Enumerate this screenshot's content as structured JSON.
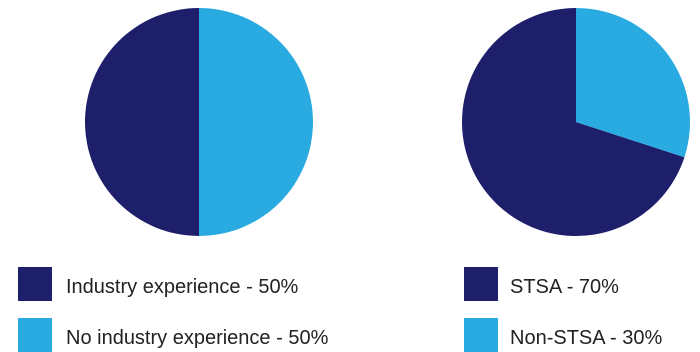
{
  "chart_data": [
    {
      "type": "pie",
      "categories": [
        "Industry experience",
        "No industry experience"
      ],
      "values": [
        50,
        50
      ],
      "colors": [
        "#1e1f6b",
        "#29abe2"
      ],
      "legend_labels": [
        "Industry experience - 50%",
        "No industry experience - 50%"
      ],
      "legend_placement": "bottom",
      "title": ""
    },
    {
      "type": "pie",
      "categories": [
        "STSA",
        "Non-STSA"
      ],
      "values": [
        70,
        30
      ],
      "colors": [
        "#1e1f6b",
        "#29abe2"
      ],
      "legend_labels": [
        "STSA - 70%",
        "Non-STSA - 30%"
      ],
      "legend_placement": "bottom",
      "title": ""
    }
  ]
}
